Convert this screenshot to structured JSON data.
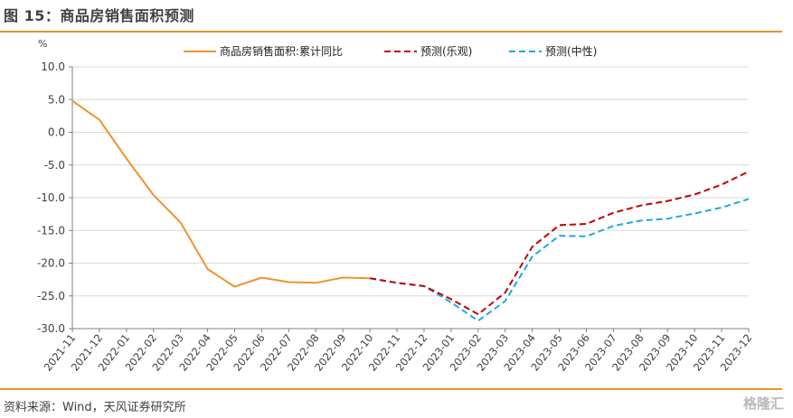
{
  "figure_title": "图 15：商品房销售面积预测",
  "source": "资料来源：Wind，天风证券研究所",
  "watermark": "格隆汇",
  "chart_data": {
    "type": "line",
    "yunit": "%",
    "ylim": [
      -30,
      10
    ],
    "yticks": [
      10.0,
      5.0,
      0.0,
      -5.0,
      -10.0,
      -15.0,
      -20.0,
      -25.0,
      -30.0
    ],
    "categories": [
      "2021-11",
      "2021-12",
      "2022-01",
      "2022-02",
      "2022-03",
      "2022-04",
      "2022-05",
      "2022-06",
      "2022-07",
      "2022-08",
      "2022-09",
      "2022-10",
      "2022-11",
      "2022-12",
      "2023-01",
      "2023-02",
      "2023-03",
      "2023-04",
      "2023-05",
      "2023-06",
      "2023-07",
      "2023-08",
      "2023-09",
      "2023-10",
      "2023-11",
      "2023-12"
    ],
    "legend_position": "top",
    "series": [
      {
        "name": "商品房销售面积:累计同比",
        "style": "solid",
        "color": "#f0922e",
        "values": [
          4.8,
          1.9,
          -4.0,
          -9.6,
          -13.8,
          -20.9,
          -23.6,
          -22.2,
          -22.9,
          -23.0,
          -22.2,
          -22.3,
          null,
          null,
          null,
          null,
          null,
          null,
          null,
          null,
          null,
          null,
          null,
          null,
          null,
          null
        ]
      },
      {
        "name": "预测(乐观)",
        "style": "dashed",
        "color": "#c00000",
        "values": [
          null,
          null,
          null,
          null,
          null,
          null,
          null,
          null,
          null,
          null,
          null,
          -22.3,
          -23.0,
          -23.5,
          -25.5,
          -27.8,
          -24.5,
          -17.5,
          -14.2,
          -14.0,
          -12.3,
          -11.2,
          -10.5,
          -9.5,
          -8.0,
          -6.0
        ]
      },
      {
        "name": "预测(中性)",
        "style": "dashed",
        "color": "#1ea8e0",
        "values": [
          null,
          null,
          null,
          null,
          null,
          null,
          null,
          null,
          null,
          null,
          null,
          -22.3,
          -23.0,
          -23.5,
          -26.0,
          -28.8,
          -25.8,
          -19.0,
          -15.8,
          -15.9,
          -14.3,
          -13.5,
          -13.2,
          -12.4,
          -11.5,
          -10.2
        ]
      }
    ]
  }
}
